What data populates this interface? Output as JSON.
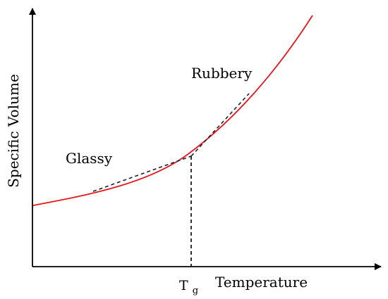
{
  "labels": {
    "y_axis": "Specific Volume",
    "x_axis": "Temperature",
    "tg_main": "T",
    "tg_sub": "g",
    "glassy": "Glassy",
    "rubbery": "Rubbery"
  },
  "colors": {
    "curve": "#e8161b",
    "axis": "#000000",
    "dashed": "#1a2233"
  }
}
